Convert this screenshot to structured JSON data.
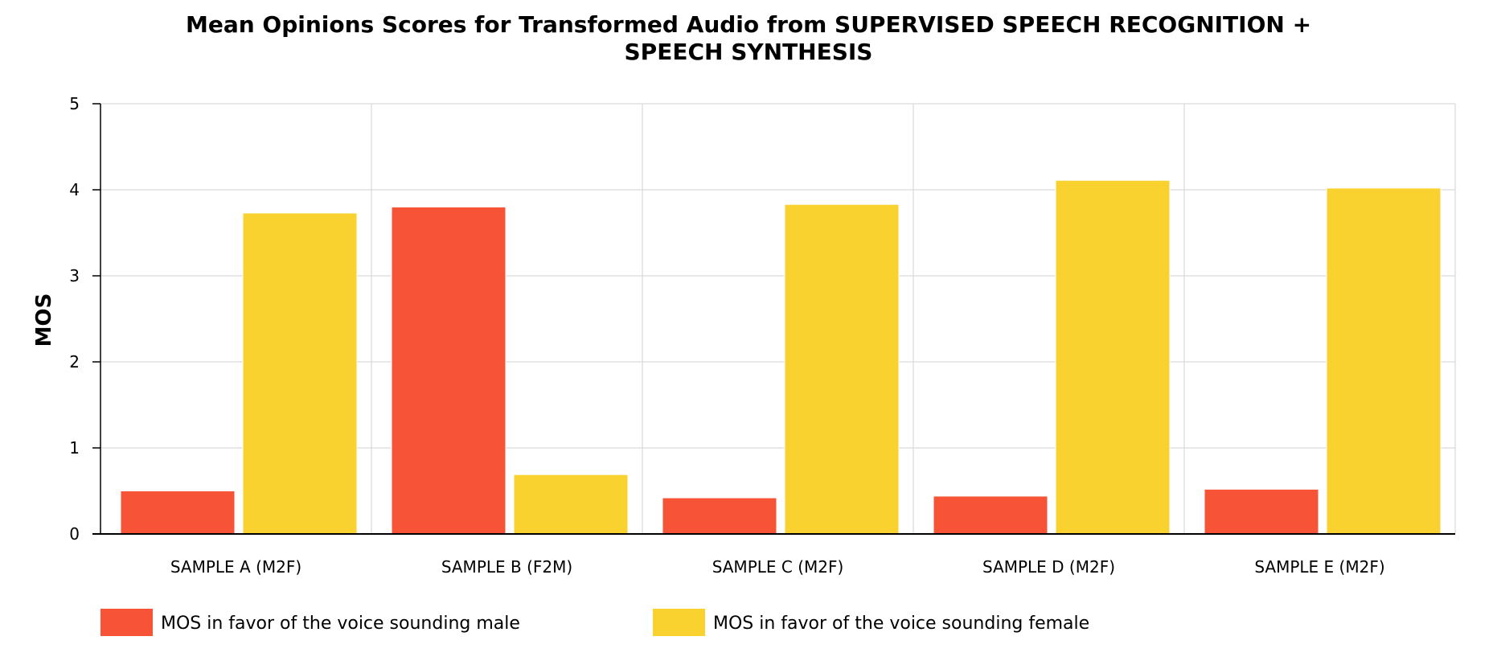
{
  "chart_data": {
    "type": "bar",
    "title_lines": [
      "Mean Opinions Scores for Transformed Audio from SUPERVISED SPEECH RECOGNITION +",
      "SPEECH SYNTHESIS"
    ],
    "xlabel": "",
    "ylabel": "MOS",
    "ylim": [
      0,
      5
    ],
    "yticks": [
      "0",
      "1",
      "2",
      "3",
      "4",
      "5"
    ],
    "grid": true,
    "legend_position": "bottom-left",
    "categories": [
      "SAMPLE A (M2F)",
      "SAMPLE B (F2M)",
      "SAMPLE C (M2F)",
      "SAMPLE D (M2F)",
      "SAMPLE E (M2F)"
    ],
    "series": [
      {
        "name": "MOS in favor of the voice sounding male",
        "color": "#F75336",
        "values": [
          0.5,
          3.8,
          0.42,
          0.44,
          0.52
        ]
      },
      {
        "name": "MOS in favor of the voice sounding female",
        "color": "#F9D230",
        "values": [
          3.73,
          0.69,
          3.83,
          4.11,
          4.02
        ]
      }
    ]
  }
}
